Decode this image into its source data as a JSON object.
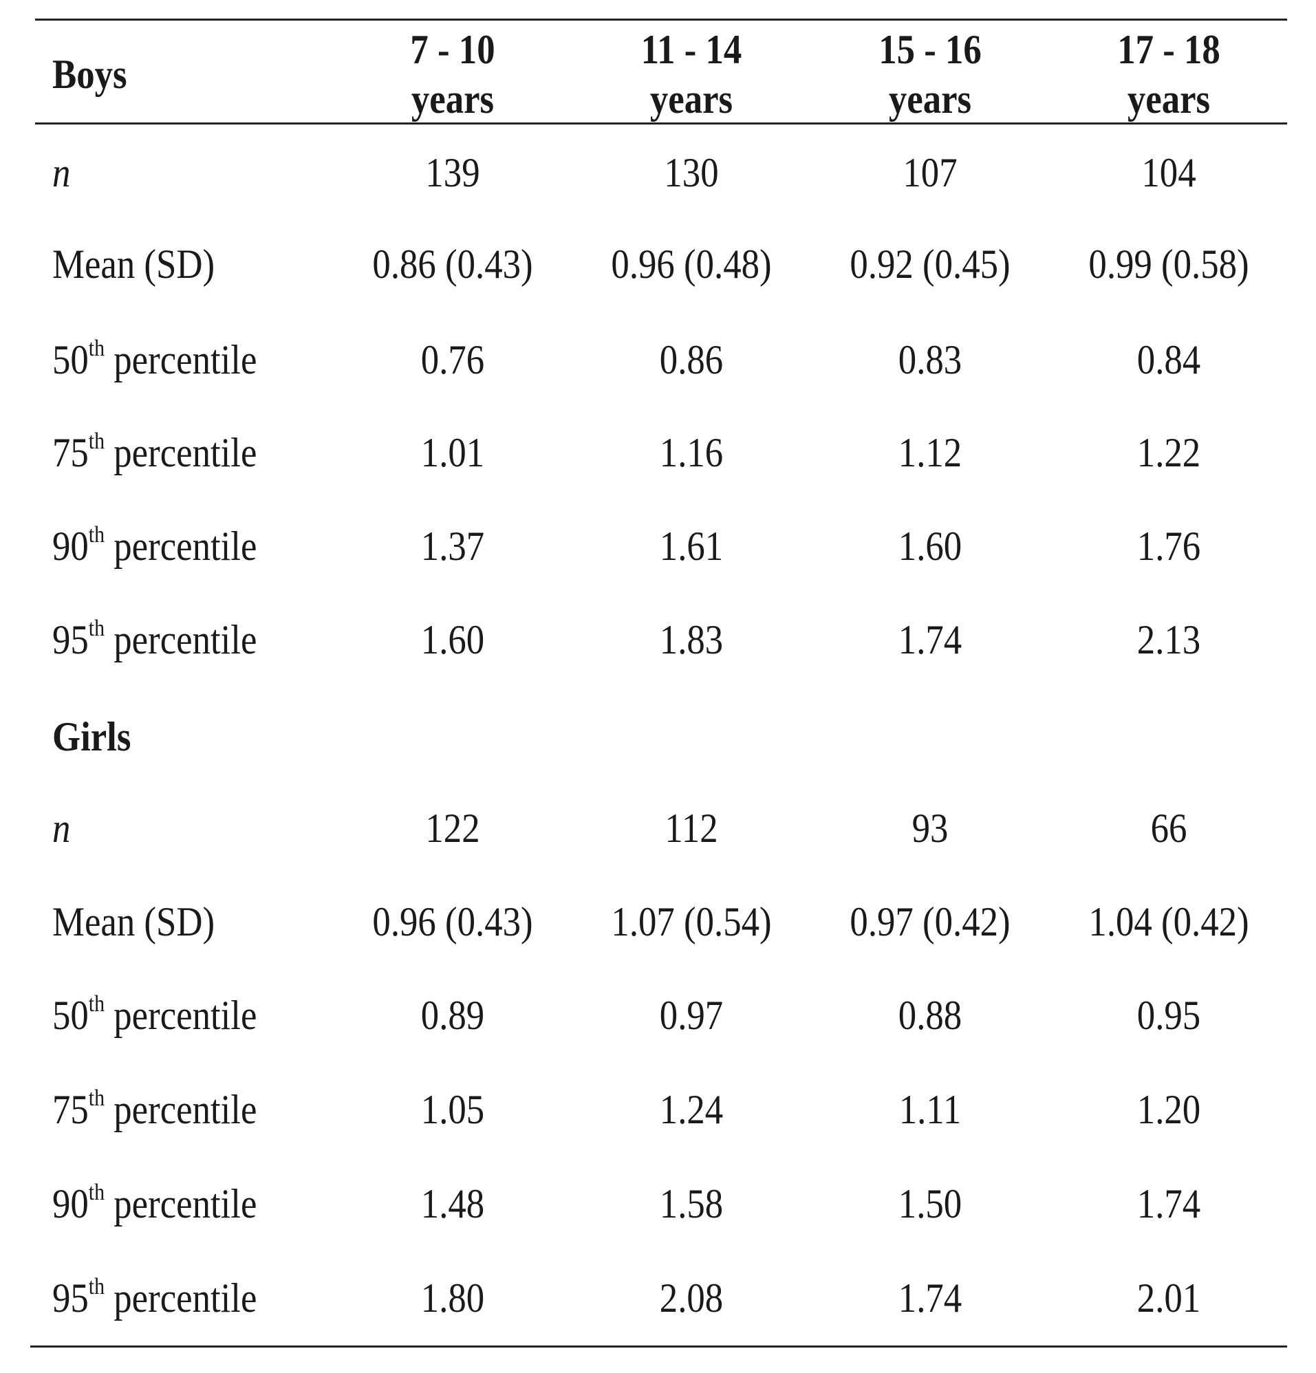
{
  "table": {
    "header": {
      "group_label": "Boys",
      "columns": [
        {
          "range": "7 - 10",
          "unit": "years"
        },
        {
          "range": "11 - 14",
          "unit": "years"
        },
        {
          "range": "15 - 16",
          "unit": "years"
        },
        {
          "range": "17 - 18",
          "unit": "years"
        }
      ]
    },
    "groups": [
      {
        "label": "Boys",
        "rows": [
          {
            "label": "n",
            "sup": "",
            "suffix": "",
            "italic": true,
            "values": [
              "139",
              "130",
              "107",
              "104"
            ]
          },
          {
            "label": "Mean (SD)",
            "sup": "",
            "suffix": "",
            "italic": false,
            "values": [
              "0.86 (0.43)",
              "0.96 (0.48)",
              "0.92 (0.45)",
              "0.99 (0.58)"
            ]
          },
          {
            "label": "50",
            "sup": "th",
            "suffix": " percentile",
            "italic": false,
            "values": [
              "0.76",
              "0.86",
              "0.83",
              "0.84"
            ]
          },
          {
            "label": "75",
            "sup": "th",
            "suffix": " percentile",
            "italic": false,
            "values": [
              "1.01",
              "1.16",
              "1.12",
              "1.22"
            ]
          },
          {
            "label": "90",
            "sup": "th",
            "suffix": " percentile",
            "italic": false,
            "values": [
              "1.37",
              "1.61",
              "1.60",
              "1.76"
            ]
          },
          {
            "label": "95",
            "sup": "th",
            "suffix": " percentile",
            "italic": false,
            "values": [
              "1.60",
              "1.83",
              "1.74",
              "2.13"
            ]
          }
        ]
      },
      {
        "label": "Girls",
        "rows": [
          {
            "label": "n",
            "sup": "",
            "suffix": "",
            "italic": true,
            "values": [
              "122",
              "112",
              "93",
              "66"
            ]
          },
          {
            "label": "Mean (SD)",
            "sup": "",
            "suffix": "",
            "italic": false,
            "values": [
              "0.96 (0.43)",
              "1.07 (0.54)",
              "0.97 (0.42)",
              "1.04 (0.42)"
            ]
          },
          {
            "label": "50",
            "sup": "th",
            "suffix": " percentile",
            "italic": false,
            "values": [
              "0.89",
              "0.97",
              "0.88",
              "0.95"
            ]
          },
          {
            "label": "75",
            "sup": "th",
            "suffix": " percentile",
            "italic": false,
            "values": [
              "1.05",
              "1.24",
              "1.11",
              "1.20"
            ]
          },
          {
            "label": "90",
            "sup": "th",
            "suffix": " percentile",
            "italic": false,
            "values": [
              "1.48",
              "1.58",
              "1.50",
              "1.74"
            ]
          },
          {
            "label": "95",
            "sup": "th",
            "suffix": " percentile",
            "italic": false,
            "values": [
              "1.80",
              "2.08",
              "1.74",
              "2.01"
            ]
          }
        ]
      }
    ]
  }
}
